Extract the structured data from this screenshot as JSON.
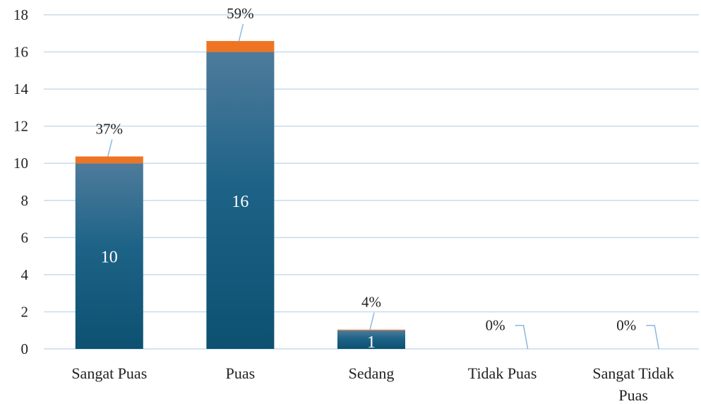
{
  "chart_data": {
    "type": "bar",
    "stacked": true,
    "categories": [
      "Sangat Puas",
      "Puas",
      "Sedang",
      "Tidak Puas",
      "Sangat Tidak Puas"
    ],
    "series": [
      {
        "values": [
          10,
          16,
          1,
          0,
          0
        ],
        "data_labels": [
          "10",
          "16",
          "1",
          "0",
          "0"
        ],
        "color": "#0f5577"
      },
      {
        "values": [
          0.37,
          0.59,
          0.04,
          0,
          0
        ],
        "data_labels": [
          "37%",
          "59%",
          "4%",
          "0%",
          "0%"
        ],
        "color": "#ee7424"
      }
    ],
    "yticks": [
      "0",
      "2",
      "4",
      "6",
      "8",
      "10",
      "12",
      "14",
      "16",
      "18"
    ],
    "ylim": [
      0,
      18
    ],
    "grid": true,
    "legend": "none",
    "title": "",
    "xlabel": "",
    "ylabel": ""
  }
}
